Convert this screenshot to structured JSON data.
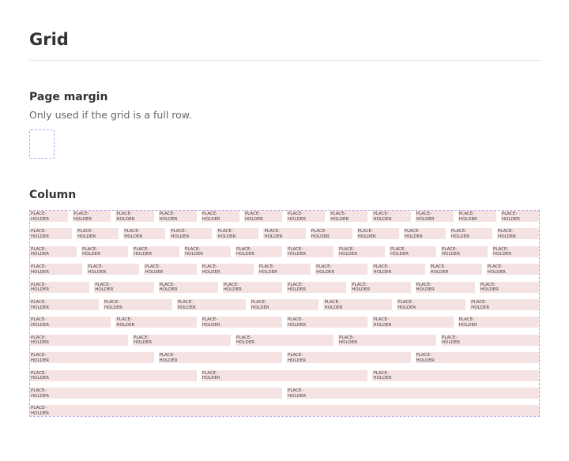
{
  "header": {
    "title": "Grid"
  },
  "page_margin": {
    "title": "Page margin",
    "description": "Only used if the grid is a full row."
  },
  "column": {
    "title": "Column",
    "rows": [
      [
        "PLACE-\nHOLDER",
        "PLACE-\nHOLDER",
        "PLACE-\nHOLDER",
        "PLACE-\nHOLDER",
        "PLACE-\nHOLDER",
        "PLACE-\nHOLDER",
        "PLACE-\nHOLDER",
        "PLACE-\nHOLDER",
        "PLACE-\nHOLDER",
        "PLACE-\nHOLDER",
        "PLACE-\nHOLDER",
        "PLACE-\nHOLDER"
      ],
      [
        "PLACE-\nHOLDER",
        "PLACE-\nHOLDER",
        "PLACE-\nHOLDER",
        "PLACE-\nHOLDER",
        "PLACE-\nHOLDER",
        "PLACE-\nHOLDER",
        "PLACE-\nHOLDER",
        "PLACE-\nHOLDER",
        "PLACE-\nHOLDER",
        "PLACE-\nHOLDER",
        "PLACE-\nHOLDER"
      ],
      [
        "PLACE-\nHOLDER",
        "PLACE-\nHOLDER",
        "PLACE-\nHOLDER",
        "PLACE-\nHOLDER",
        "PLACE-\nHOLDER",
        "PLACE-\nHOLDER",
        "PLACE-\nHOLDER",
        "PLACE-\nHOLDER",
        "PLACE-\nHOLDER",
        "PLACE-\nHOLDER"
      ],
      [
        "PLACE-\nHOLDER",
        "PLACE-\nHOLDER",
        "PLACE-\nHOLDER",
        "PLACE-\nHOLDER",
        "PLACE-\nHOLDER",
        "PLACE-\nHOLDER",
        "PLACE-\nHOLDER",
        "PLACE-\nHOLDER",
        "PLACE-\nHOLDER"
      ],
      [
        "PLACE-\nHOLDER",
        "PLACE-\nHOLDER",
        "PLACE-\nHOLDER",
        "PLACE-\nHOLDER",
        "PLACE-\nHOLDER",
        "PLACE-\nHOLDER",
        "PLACE-\nHOLDER",
        "PLACE-\nHOLDER"
      ],
      [
        "PLACE-\nHOLDER",
        "PLACE-\nHOLDER",
        "PLACE-\nHOLDER",
        "PLACE-\nHOLDER",
        "PLACE-\nHOLDER",
        "PLACE-\nHOLDER",
        "PLACE-\nHOLDER"
      ],
      [
        "PLACE-\nHOLDER",
        "PLACE-\nHOLDER",
        "PLACE-\nHOLDER",
        "PLACE-\nHOLDER",
        "PLACE-\nHOLDER",
        "PLACE-\nHOLDER"
      ],
      [
        "PLACE-\nHOLDER",
        "PLACE-\nHOLDER",
        "PLACE-\nHOLDER",
        "PLACE-\nHOLDER",
        "PLACE-\nHOLDER"
      ],
      [
        "PLACE-\nHOLDER",
        "PLACE-\nHOLDER",
        "PLACE-\nHOLDER",
        "PLACE-\nHOLDER"
      ],
      [
        "PLACE-\nHOLDER",
        "PLACE-\nHOLDER",
        "PLACE-\nHOLDER"
      ],
      [
        "PLACE-\nHOLDER",
        "PLACE-\nHOLDER"
      ],
      [
        "PLACE-\nHOLDER"
      ]
    ]
  }
}
